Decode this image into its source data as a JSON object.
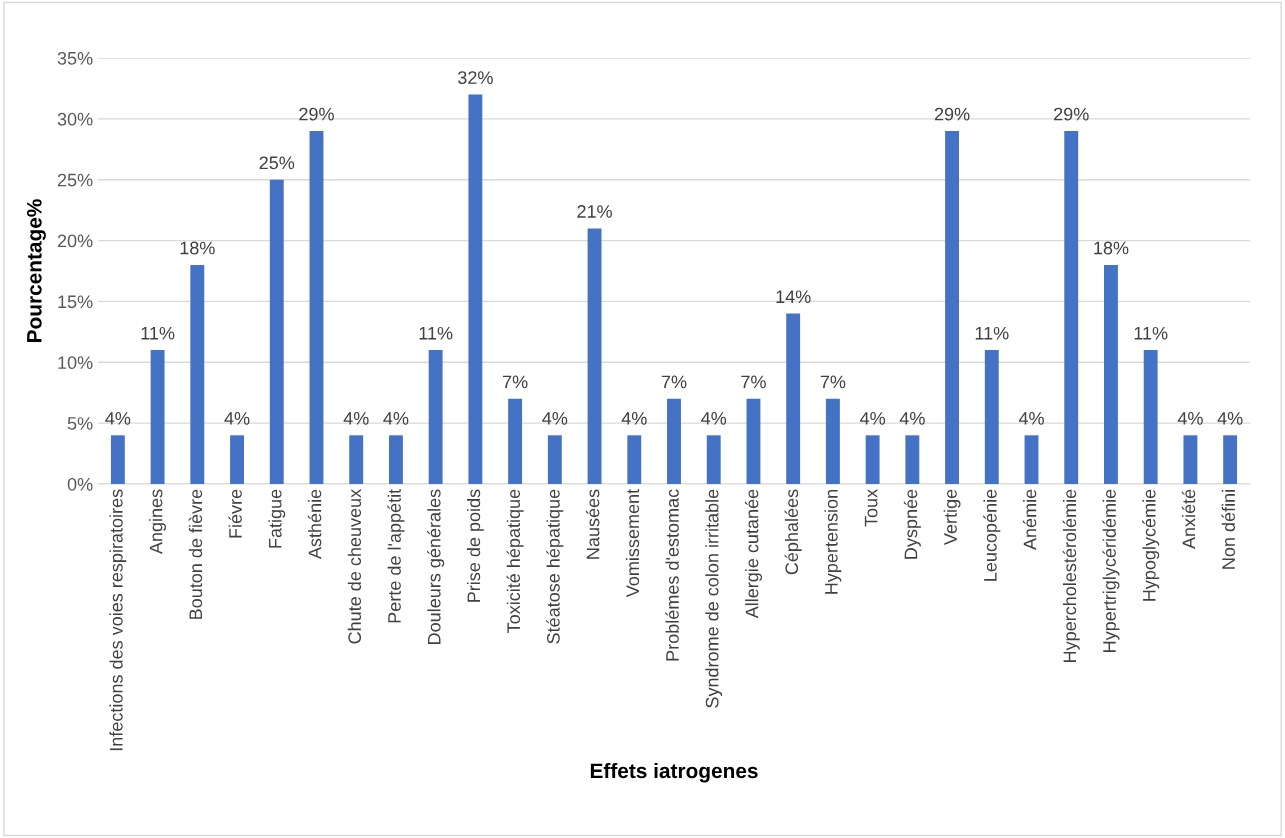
{
  "chart_data": {
    "type": "bar",
    "xlabel": "Effets iatrogenes",
    "ylabel": "Pourcentage%",
    "categories": [
      "Infections des voies respiratoires",
      "Angines",
      "Bouton de fièvre",
      "Fiévre",
      "Fatigue",
      "Asthénie",
      "Chute de cheuveux",
      "Perte de l'appétit",
      "Douleurs générales",
      "Prise de poids",
      "Toxicité hépatique",
      "Stéatose hépatique",
      "Nausées",
      "Vomissement",
      "Problémes d'estomac",
      "Syndrome de colon irritable",
      "Allergie cutanée",
      "Céphalées",
      "Hypertension",
      "Toux",
      "Dyspnée",
      "Vertige",
      "Leucopénie",
      "Anémie",
      "Hypercholestérolémie",
      "Hypertriglycéridémie",
      "Hypoglycémie",
      "Anxiété",
      "Non défini"
    ],
    "values": [
      4,
      11,
      18,
      4,
      25,
      29,
      4,
      4,
      11,
      32,
      7,
      4,
      21,
      4,
      7,
      4,
      7,
      14,
      7,
      4,
      4,
      29,
      11,
      4,
      29,
      18,
      11,
      4,
      4
    ],
    "value_labels": [
      "4%",
      "11%",
      "18%",
      "4%",
      "25%",
      "29%",
      "4%",
      "4%",
      "11%",
      "32%",
      "7%",
      "4%",
      "21%",
      "4%",
      "7%",
      "4%",
      "7%",
      "14%",
      "7%",
      "4%",
      "4%",
      "29%",
      "11%",
      "4%",
      "29%",
      "18%",
      "11%",
      "4%",
      "4%"
    ],
    "color": "#4472c4",
    "ylim": [
      0,
      35
    ],
    "yticks": [
      {
        "value": 0,
        "label": "0%"
      },
      {
        "value": 5,
        "label": "5%"
      },
      {
        "value": 10,
        "label": "10%"
      },
      {
        "value": 15,
        "label": "15%"
      },
      {
        "value": 20,
        "label": "20%"
      },
      {
        "value": 25,
        "label": "25%"
      },
      {
        "value": 30,
        "label": "30%"
      },
      {
        "value": 35,
        "label": "35%"
      }
    ],
    "grid": "y",
    "legend": false
  }
}
